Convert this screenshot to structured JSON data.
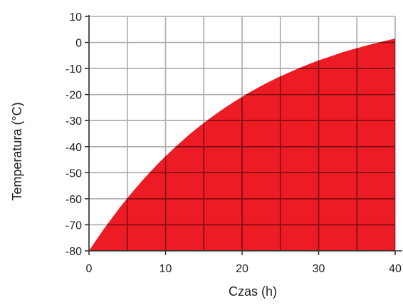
{
  "chart_data": {
    "type": "area",
    "xlabel": "Czas (h)",
    "ylabel": "Temperatura (°C)",
    "xlim": [
      0,
      40
    ],
    "ylim": [
      -80,
      10
    ],
    "x_ticks": [
      0,
      10,
      20,
      30,
      40
    ],
    "y_ticks": [
      10,
      0,
      -10,
      -20,
      -30,
      -40,
      -50,
      -60,
      -70,
      -80
    ],
    "grid": true,
    "x_grid_step": 5,
    "series": [
      {
        "x": [
          0,
          1,
          2,
          3,
          4,
          5,
          6,
          7,
          8,
          9,
          10,
          11,
          12,
          13,
          14,
          15,
          16,
          17,
          18,
          19,
          20,
          21,
          22,
          23,
          24,
          25,
          26,
          27,
          28,
          29,
          30,
          31,
          32,
          33,
          34,
          35,
          36,
          37,
          38,
          39,
          40
        ],
        "y": [
          -80,
          -75.6,
          -71.4,
          -67.4,
          -63.5,
          -59.8,
          -56.3,
          -52.9,
          -49.7,
          -46.6,
          -43.7,
          -40.9,
          -38.2,
          -35.6,
          -33.2,
          -30.9,
          -28.7,
          -26.6,
          -24.6,
          -22.7,
          -20.9,
          -19.1,
          -17.5,
          -15.9,
          -14.4,
          -13.0,
          -11.7,
          -10.4,
          -9.2,
          -8.0,
          -6.9,
          -5.9,
          -4.9,
          -3.9,
          -3.0,
          -2.2,
          -1.4,
          -0.6,
          0.1,
          0.8,
          1.5
        ]
      }
    ],
    "colors": {
      "fill": "#ed1c24",
      "grid_over_white": "#aaaaaa",
      "grid_over_fill": "#7a0d12",
      "axis": "#333333"
    }
  }
}
